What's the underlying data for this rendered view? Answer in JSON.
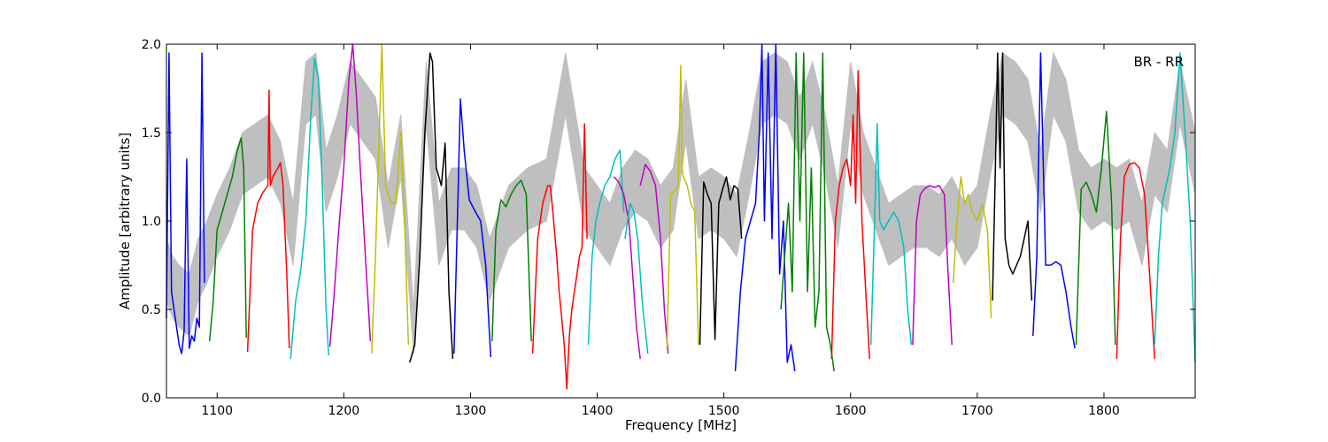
{
  "chart_data": {
    "type": "line",
    "title": "",
    "annotation": "BR - RR",
    "legend_position": "top-right",
    "xlabel": "Frequency [MHz]",
    "ylabel": "Amplitude [arbitrary units]",
    "xlim": [
      1060,
      1872
    ],
    "ylim": [
      0.0,
      2.0
    ],
    "x_ticks": [
      1100,
      1200,
      1300,
      1400,
      1500,
      1600,
      1700,
      1800
    ],
    "y_ticks": [
      0.0,
      0.5,
      1.0,
      1.5,
      2.0
    ],
    "x_tick_labels": [
      "1100",
      "1200",
      "1300",
      "1400",
      "1500",
      "1600",
      "1700",
      "1800"
    ],
    "y_tick_labels": [
      "0.0",
      "0.5",
      "1.0",
      "1.5",
      "2.0"
    ],
    "grid": false,
    "background_band": {
      "color": "#bfbfbf",
      "description": "envelope",
      "x": [
        1060,
        1065,
        1070,
        1078,
        1085,
        1092,
        1100,
        1110,
        1120,
        1130,
        1140,
        1150,
        1160,
        1170,
        1178,
        1186,
        1195,
        1205,
        1215,
        1225,
        1235,
        1245,
        1255,
        1265,
        1275,
        1285,
        1295,
        1305,
        1315,
        1330,
        1345,
        1360,
        1375,
        1390,
        1400,
        1410,
        1420,
        1430,
        1440,
        1450,
        1460,
        1470,
        1480,
        1490,
        1500,
        1510,
        1520,
        1530,
        1540,
        1550,
        1560,
        1570,
        1580,
        1590,
        1600,
        1610,
        1620,
        1630,
        1640,
        1650,
        1660,
        1670,
        1680,
        1690,
        1700,
        1710,
        1720,
        1730,
        1740,
        1750,
        1760,
        1770,
        1780,
        1790,
        1800,
        1810,
        1820,
        1830,
        1840,
        1850,
        1860,
        1872
      ],
      "y": [
        0.9,
        0.8,
        0.75,
        0.7,
        0.9,
        1.0,
        1.15,
        1.3,
        1.5,
        1.55,
        1.6,
        1.45,
        1.1,
        1.9,
        1.95,
        1.4,
        1.6,
        1.9,
        1.8,
        1.7,
        1.2,
        1.6,
        0.5,
        1.9,
        1.1,
        1.3,
        1.3,
        1.2,
        0.9,
        1.2,
        1.3,
        1.35,
        1.95,
        1.3,
        1.2,
        1.1,
        1.3,
        1.4,
        1.35,
        1.2,
        1.3,
        1.8,
        1.25,
        1.3,
        1.25,
        1.15,
        1.5,
        1.9,
        1.95,
        1.9,
        1.7,
        1.9,
        1.6,
        1.2,
        1.9,
        1.5,
        1.3,
        1.1,
        1.15,
        1.2,
        1.2,
        1.15,
        1.25,
        1.1,
        1.2,
        1.6,
        1.95,
        1.9,
        1.8,
        1.4,
        1.95,
        1.8,
        1.4,
        1.3,
        1.35,
        1.3,
        1.35,
        1.1,
        1.5,
        1.4,
        1.9,
        1.5
      ]
    },
    "series": [
      {
        "color": "#0000ff",
        "x": [
          1060,
          1062,
          1064,
          1066,
          1068,
          1070,
          1072,
          1074,
          1076,
          1078,
          1080,
          1082,
          1084,
          1086,
          1088,
          1090
        ],
        "y": [
          0.45,
          1.95,
          0.6,
          0.5,
          0.4,
          0.3,
          0.25,
          0.38,
          1.35,
          0.28,
          0.35,
          0.32,
          0.45,
          0.4,
          1.95,
          0.65
        ]
      },
      {
        "color": "#008000",
        "x": [
          1094,
          1097,
          1100,
          1104,
          1108,
          1112,
          1116,
          1119,
          1121,
          1123
        ],
        "y": [
          0.32,
          0.55,
          0.95,
          1.05,
          1.15,
          1.25,
          1.4,
          1.47,
          1.3,
          0.34
        ]
      },
      {
        "color": "#ff0000",
        "x": [
          1124,
          1128,
          1132,
          1136,
          1140,
          1141,
          1142,
          1144,
          1148,
          1150,
          1152,
          1155,
          1157
        ],
        "y": [
          0.26,
          0.95,
          1.1,
          1.16,
          1.2,
          1.74,
          1.2,
          1.25,
          1.3,
          1.33,
          1.2,
          0.7,
          0.28
        ]
      },
      {
        "color": "#00bfbf",
        "x": [
          1158,
          1162,
          1166,
          1170,
          1174,
          1177,
          1180,
          1183,
          1186,
          1188
        ],
        "y": [
          0.22,
          0.55,
          0.72,
          1.0,
          1.6,
          1.92,
          1.8,
          1.2,
          0.5,
          0.24
        ]
      },
      {
        "color": "#bf00bf",
        "x": [
          1189,
          1192,
          1196,
          1200,
          1204,
          1207,
          1210,
          1213,
          1217,
          1221
        ],
        "y": [
          0.29,
          0.55,
          0.95,
          1.3,
          1.8,
          2.0,
          1.7,
          1.3,
          0.8,
          0.32
        ]
      },
      {
        "color": "#bfbf00",
        "x": [
          1222,
          1225,
          1228,
          1230,
          1233,
          1237,
          1241,
          1245,
          1248,
          1251
        ],
        "y": [
          0.25,
          0.8,
          1.5,
          2.0,
          1.2,
          1.1,
          1.1,
          1.5,
          1.0,
          0.3
        ]
      },
      {
        "color": "#000000",
        "x": [
          1252,
          1256,
          1260,
          1264,
          1268,
          1270,
          1273,
          1277,
          1280,
          1283,
          1286
        ],
        "y": [
          0.2,
          0.3,
          0.8,
          1.5,
          1.95,
          1.9,
          1.3,
          1.2,
          1.44,
          0.6,
          0.22
        ]
      },
      {
        "color": "#0000ff",
        "x": [
          1287,
          1290,
          1292,
          1295,
          1299,
          1304,
          1308,
          1312,
          1316
        ],
        "y": [
          0.25,
          1.1,
          1.69,
          1.4,
          1.12,
          1.05,
          1.0,
          0.75,
          0.23
        ]
      },
      {
        "color": "#008000",
        "x": [
          1317,
          1320,
          1324,
          1328,
          1332,
          1336,
          1340,
          1344,
          1348
        ],
        "y": [
          0.32,
          0.95,
          1.12,
          1.08,
          1.15,
          1.2,
          1.23,
          1.15,
          0.32
        ]
      },
      {
        "color": "#ff0000",
        "x": [
          1349,
          1353,
          1357,
          1361,
          1363,
          1365,
          1368,
          1370,
          1372,
          1374,
          1376,
          1378,
          1380,
          1382,
          1384,
          1386,
          1388,
          1390,
          1392
        ],
        "y": [
          0.25,
          0.9,
          1.1,
          1.2,
          1.2,
          1.05,
          0.8,
          0.6,
          0.45,
          0.3,
          0.05,
          0.35,
          0.5,
          0.6,
          0.7,
          0.8,
          0.85,
          1.55,
          0.9
        ]
      },
      {
        "color": "#00bfbf",
        "x": [
          1393,
          1396,
          1399,
          1402,
          1406,
          1410,
          1414,
          1418,
          1421
        ],
        "y": [
          0.3,
          0.8,
          1.0,
          1.1,
          1.2,
          1.25,
          1.35,
          1.4,
          1.05
        ]
      },
      {
        "color": "#bf00bf",
        "x": [
          1413,
          1417,
          1421,
          1425,
          1428,
          1431,
          1434
        ],
        "y": [
          1.25,
          1.22,
          1.15,
          1.0,
          0.7,
          0.4,
          0.22
        ]
      },
      {
        "color": "#00bfbf",
        "x": [
          1422,
          1426,
          1429,
          1432,
          1436,
          1440
        ],
        "y": [
          0.9,
          1.1,
          1.05,
          0.9,
          0.5,
          0.25
        ]
      },
      {
        "color": "#bf00bf",
        "x": [
          1434,
          1438,
          1442,
          1446,
          1450,
          1453,
          1456
        ],
        "y": [
          1.2,
          1.32,
          1.28,
          1.2,
          0.9,
          0.5,
          0.25
        ]
      },
      {
        "color": "#bfbf00",
        "x": [
          1455,
          1458,
          1461,
          1464,
          1466,
          1467,
          1468,
          1471,
          1474,
          1477,
          1480
        ],
        "y": [
          0.28,
          1.15,
          1.17,
          1.2,
          1.88,
          1.3,
          1.25,
          1.2,
          1.1,
          1.05,
          0.3
        ]
      },
      {
        "color": "#000000",
        "x": [
          1481,
          1484,
          1487,
          1490,
          1493,
          1496,
          1499,
          1502,
          1505,
          1508,
          1511,
          1514
        ],
        "y": [
          0.3,
          1.22,
          1.15,
          1.1,
          0.33,
          1.1,
          1.18,
          1.25,
          1.12,
          1.2,
          1.18,
          0.9
        ]
      },
      {
        "color": "#0000ff",
        "x": [
          1509,
          1513,
          1517,
          1521,
          1525,
          1528,
          1530,
          1532,
          1535,
          1538,
          1541,
          1544,
          1547,
          1550,
          1553,
          1556
        ],
        "y": [
          0.15,
          0.6,
          0.9,
          1.0,
          1.1,
          1.5,
          2.0,
          1.0,
          1.95,
          0.9,
          2.0,
          0.7,
          1.0,
          0.2,
          0.3,
          0.15
        ]
      },
      {
        "color": "#008000",
        "x": [
          1545,
          1548,
          1551,
          1554,
          1557,
          1560,
          1563,
          1566,
          1569,
          1572,
          1575,
          1578,
          1581,
          1584,
          1587
        ],
        "y": [
          0.5,
          0.8,
          1.1,
          0.6,
          1.95,
          1.0,
          1.95,
          0.6,
          1.3,
          0.4,
          0.6,
          1.95,
          0.4,
          0.3,
          0.15
        ]
      },
      {
        "color": "#ff0000",
        "x": [
          1585,
          1588,
          1591,
          1594,
          1597,
          1600,
          1602,
          1604,
          1606,
          1609,
          1612,
          1615
        ],
        "y": [
          0.22,
          1.0,
          1.2,
          1.3,
          1.35,
          1.2,
          1.6,
          1.1,
          1.85,
          1.0,
          0.6,
          0.22
        ]
      },
      {
        "color": "#00bfbf",
        "x": [
          1616,
          1619,
          1621,
          1623,
          1626,
          1630,
          1634,
          1638,
          1642,
          1645,
          1648
        ],
        "y": [
          0.3,
          1.0,
          1.55,
          1.0,
          0.95,
          1.0,
          1.05,
          1.0,
          0.85,
          0.5,
          0.3
        ]
      },
      {
        "color": "#bf00bf",
        "x": [
          1649,
          1652,
          1655,
          1658,
          1662,
          1666,
          1670,
          1674,
          1677,
          1680
        ],
        "y": [
          0.3,
          1.0,
          1.15,
          1.18,
          1.2,
          1.19,
          1.2,
          1.15,
          0.7,
          0.3
        ]
      },
      {
        "color": "#bfbf00",
        "x": [
          1681,
          1684,
          1687,
          1690,
          1693,
          1696,
          1700,
          1704,
          1708,
          1711
        ],
        "y": [
          0.65,
          1.0,
          1.25,
          1.1,
          1.15,
          1.05,
          1.0,
          1.1,
          0.95,
          0.45
        ]
      },
      {
        "color": "#000000",
        "x": [
          1712,
          1714,
          1716,
          1718,
          1720,
          1722,
          1725,
          1728,
          1731,
          1734,
          1737,
          1740,
          1743
        ],
        "y": [
          0.55,
          1.2,
          1.95,
          1.3,
          1.95,
          0.9,
          0.75,
          0.7,
          0.75,
          0.8,
          0.9,
          1.0,
          0.55
        ]
      },
      {
        "color": "#0000ff",
        "x": [
          1744,
          1747,
          1750,
          1754,
          1758,
          1762,
          1766,
          1770,
          1774,
          1777
        ],
        "y": [
          0.35,
          0.8,
          1.95,
          0.75,
          0.75,
          0.77,
          0.75,
          0.6,
          0.4,
          0.28
        ]
      },
      {
        "color": "#008000",
        "x": [
          1778,
          1782,
          1786,
          1790,
          1794,
          1798,
          1802,
          1806,
          1809
        ],
        "y": [
          0.3,
          1.18,
          1.22,
          1.15,
          1.05,
          1.3,
          1.62,
          1.1,
          0.3
        ]
      },
      {
        "color": "#ff0000",
        "x": [
          1810,
          1813,
          1816,
          1820,
          1824,
          1828,
          1832,
          1836,
          1840
        ],
        "y": [
          0.22,
          0.9,
          1.25,
          1.32,
          1.33,
          1.3,
          1.15,
          0.7,
          0.22
        ]
      },
      {
        "color": "#00bfbf",
        "x": [
          1840,
          1843,
          1846,
          1849,
          1852,
          1856,
          1860,
          1864,
          1868,
          1872
        ],
        "y": [
          0.3,
          0.8,
          1.1,
          1.2,
          1.3,
          1.5,
          1.95,
          1.5,
          1.0,
          0.2
        ]
      }
    ]
  }
}
